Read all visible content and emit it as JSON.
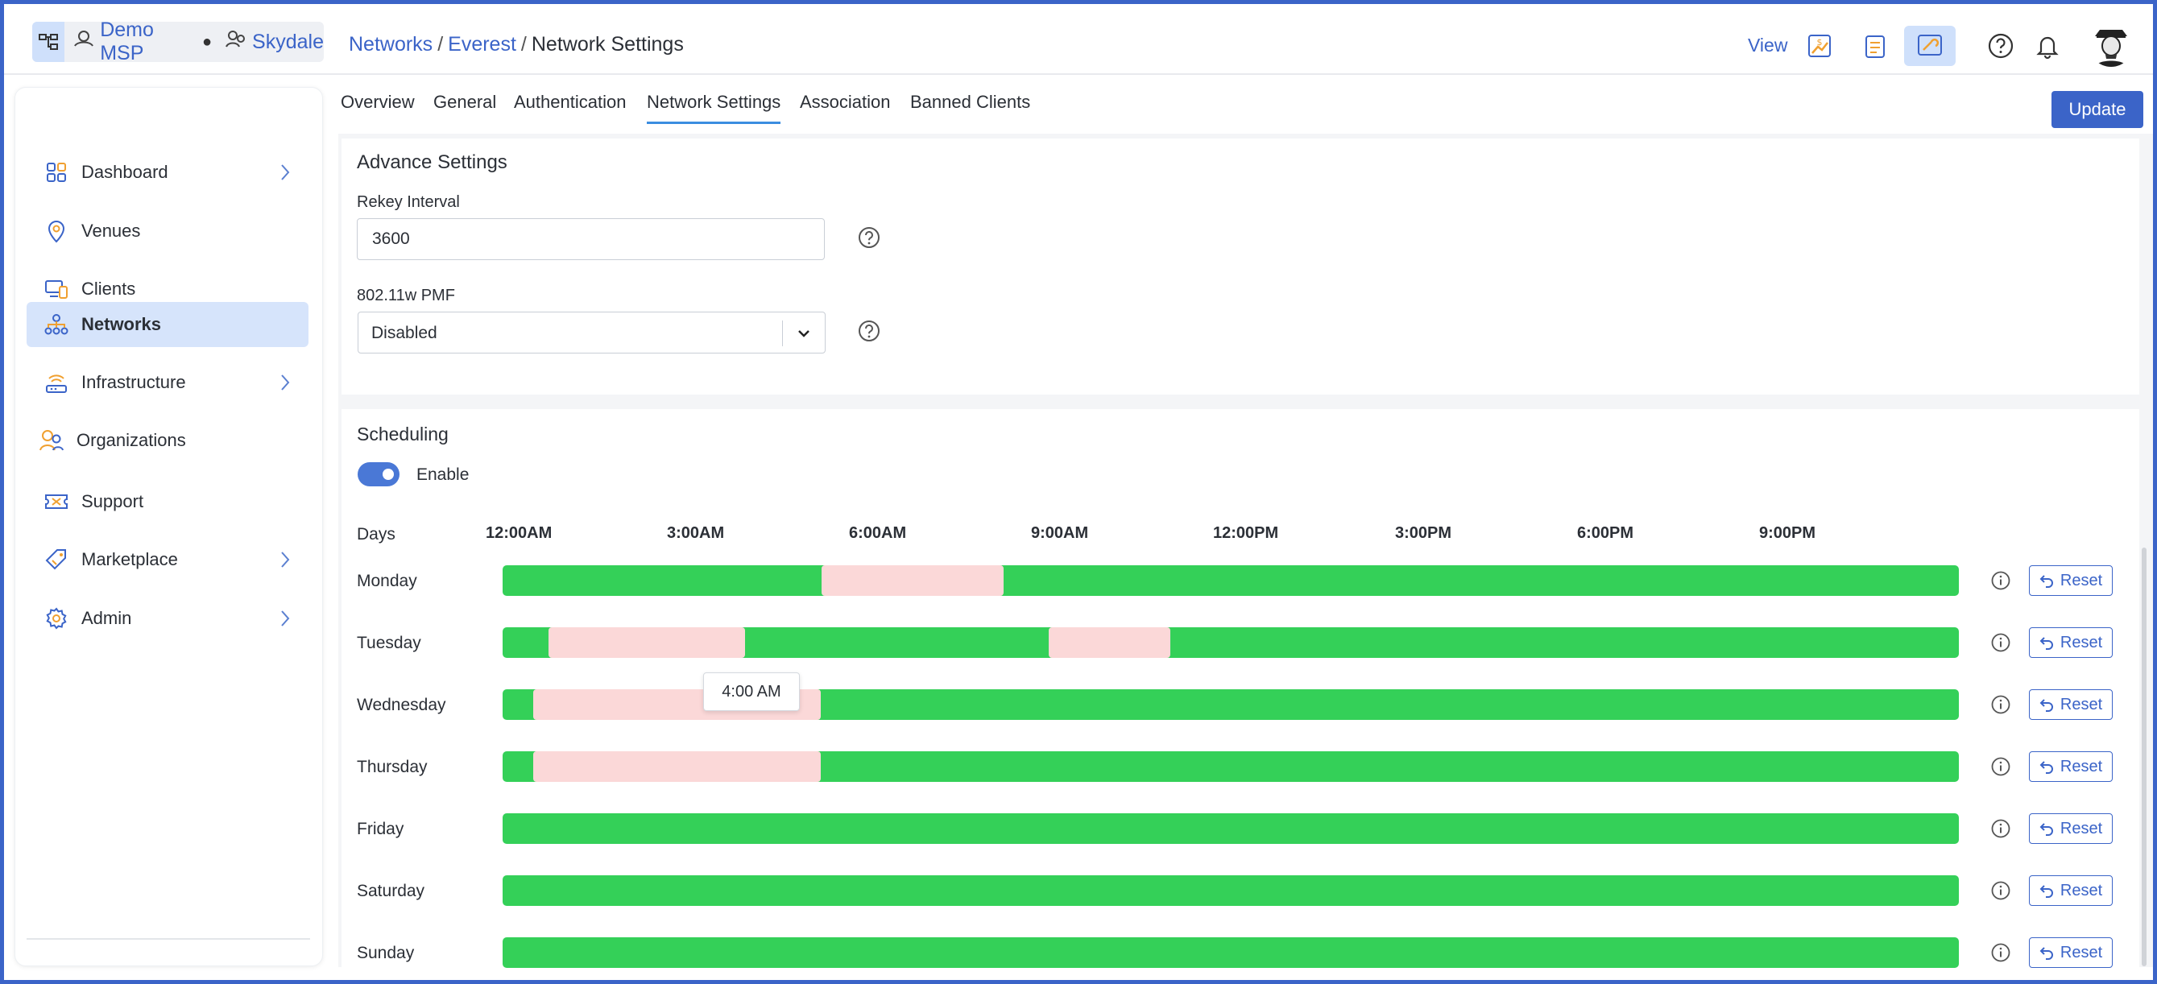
{
  "header": {
    "org": "Demo MSP",
    "sub_org": "Skydale",
    "separator": "●",
    "breadcrumb": [
      {
        "label": "Networks",
        "link": true
      },
      {
        "label": "Everest",
        "link": true
      },
      {
        "label": "Network Settings",
        "link": false
      }
    ],
    "crumb_sep": "/",
    "view_label": "View"
  },
  "sidebar": {
    "items": [
      {
        "label": "Dashboard",
        "icon": "grid-icon",
        "chevron": true
      },
      {
        "label": "Venues",
        "icon": "location-pin-icon",
        "chevron": false
      },
      {
        "label": "Clients",
        "icon": "devices-icon",
        "chevron": false
      },
      {
        "label": "Networks",
        "icon": "network-icon",
        "chevron": false,
        "active": true
      },
      {
        "label": "Infrastructure",
        "icon": "router-icon",
        "chevron": true
      },
      {
        "label": "Organizations",
        "icon": "users-icon",
        "chevron": false
      },
      {
        "label": "Support",
        "icon": "ticket-icon",
        "chevron": false
      },
      {
        "label": "Marketplace",
        "icon": "tag-icon",
        "chevron": true
      },
      {
        "label": "Admin",
        "icon": "gear-icon",
        "chevron": true
      }
    ]
  },
  "tabs": [
    {
      "label": "Overview"
    },
    {
      "label": "General"
    },
    {
      "label": "Authentication"
    },
    {
      "label": "Network Settings",
      "active": true
    },
    {
      "label": "Association"
    },
    {
      "label": "Banned Clients"
    }
  ],
  "update_label": "Update",
  "advance": {
    "title": "Advance Settings",
    "rekey_label": "Rekey Interval",
    "rekey_value": "3600",
    "pmf_label": "802.11w PMF",
    "pmf_value": "Disabled"
  },
  "scheduling": {
    "title": "Scheduling",
    "enable_label": "Enable",
    "enabled": true,
    "days_header": "Days",
    "time_labels": [
      "12:00AM",
      "3:00AM",
      "6:00AM",
      "9:00AM",
      "12:00PM",
      "3:00PM",
      "6:00PM",
      "9:00PM"
    ],
    "reset_label": "Reset",
    "tooltip": "4:00 AM",
    "days": [
      {
        "name": "Monday",
        "off": [
          [
            5.25,
            8.25
          ]
        ]
      },
      {
        "name": "Tuesday",
        "off": [
          [
            0.75,
            4.0
          ],
          [
            9.0,
            11.0
          ]
        ]
      },
      {
        "name": "Wednesday",
        "off": [
          [
            0.5,
            5.25
          ]
        ]
      },
      {
        "name": "Thursday",
        "off": [
          [
            0.5,
            5.25
          ]
        ]
      },
      {
        "name": "Friday",
        "off": []
      },
      {
        "name": "Saturday",
        "off": []
      },
      {
        "name": "Sunday",
        "off": []
      }
    ],
    "colors": {
      "on": "#34d058",
      "off": "#fbd8d8"
    }
  }
}
